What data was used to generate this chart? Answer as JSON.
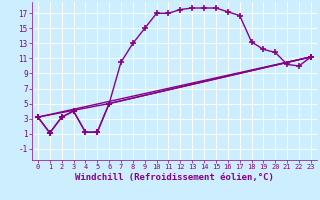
{
  "background_color": "#cceeff",
  "grid_color": "#aadddd",
  "line_color": "#880088",
  "marker": "+",
  "markersize": 5,
  "linewidth": 1.0,
  "xlabel": "Windchill (Refroidissement éolien,°C)",
  "xlabel_fontsize": 6.5,
  "xtick_fontsize": 5.0,
  "ytick_fontsize": 5.5,
  "xtick_labels": [
    "0",
    "1",
    "2",
    "3",
    "4",
    "5",
    "6",
    "7",
    "8",
    "9",
    "10",
    "11",
    "12",
    "13",
    "14",
    "15",
    "16",
    "17",
    "18",
    "19",
    "20",
    "21",
    "22",
    "23"
  ],
  "ytick_vals": [
    -1,
    1,
    3,
    5,
    7,
    9,
    11,
    13,
    15,
    17
  ],
  "ytick_labels": [
    "-1",
    "1",
    "3",
    "5",
    "7",
    "9",
    "11",
    "13",
    "15",
    "17"
  ],
  "xlim": [
    -0.5,
    23.5
  ],
  "ylim": [
    -2.5,
    18.5
  ],
  "series": [
    {
      "x": [
        0,
        1,
        2,
        3,
        4,
        5,
        6,
        7,
        8,
        9,
        10,
        11,
        12,
        13,
        14,
        15,
        16,
        17,
        18,
        19,
        20,
        21,
        22,
        23
      ],
      "y": [
        3.2,
        1.1,
        3.2,
        4.0,
        1.2,
        1.2,
        5.0,
        10.5,
        13.0,
        15.0,
        17.0,
        17.0,
        17.5,
        17.7,
        17.7,
        17.7,
        17.2,
        16.7,
        13.2,
        12.2,
        11.8,
        10.2,
        10.0,
        11.2
      ]
    },
    {
      "x": [
        0,
        1,
        2,
        3,
        4,
        5,
        6,
        23
      ],
      "y": [
        3.2,
        1.1,
        3.2,
        4.0,
        1.2,
        1.2,
        5.0,
        11.2
      ]
    },
    {
      "x": [
        0,
        6,
        23
      ],
      "y": [
        3.2,
        5.0,
        11.2
      ]
    },
    {
      "x": [
        0,
        23
      ],
      "y": [
        3.2,
        11.2
      ]
    }
  ]
}
